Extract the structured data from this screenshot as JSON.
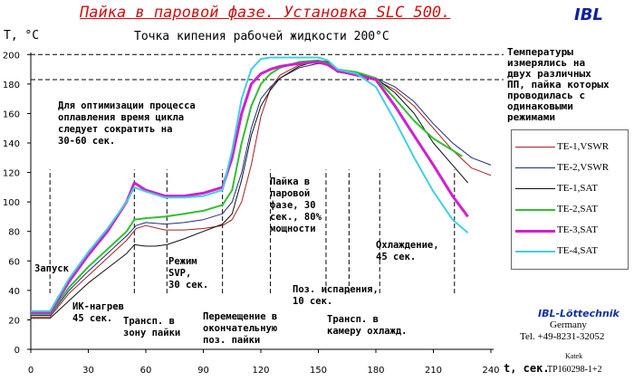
{
  "header": {
    "title": "Пайка в паровой фазе. Установка SLC 500.",
    "logo": "IBL",
    "subtitle": "Точка кипения рабочей жидкости 200°С"
  },
  "colors": {
    "title": "#d01010",
    "logo": "#1020a0",
    "te1_vswr": "#a52020",
    "te2_vswr": "#202a80",
    "te1_sat": "#101010",
    "te2_sat": "#30c030",
    "te3_sat": "#d020d0",
    "te4_sat": "#40d0e0"
  },
  "chart_data": {
    "type": "line",
    "title": "Пайка в паровой фазе. Установка SLC 500.",
    "subtitle": "Точка кипения рабочей жидкости 200°С",
    "xlabel": "t, сек.",
    "ylabel": "T, °C",
    "xlim": [
      0,
      240
    ],
    "ylim": [
      0,
      210
    ],
    "xticks": [
      0,
      30,
      60,
      90,
      120,
      150,
      180,
      210,
      240
    ],
    "yticks": [
      0,
      20,
      40,
      60,
      80,
      100,
      120,
      140,
      160,
      180,
      200
    ],
    "grid": false,
    "legend_position": "right",
    "hlines": [
      200,
      183
    ],
    "vlines": [
      10,
      54,
      71,
      100,
      125,
      154,
      166,
      182,
      221
    ],
    "series": [
      {
        "name": "TE-1,VSWR",
        "color": "#a52020",
        "width": 1,
        "x": [
          0,
          10,
          20,
          30,
          40,
          50,
          55,
          60,
          70,
          80,
          90,
          100,
          105,
          110,
          115,
          120,
          125,
          130,
          140,
          150,
          155,
          160,
          170,
          180,
          190,
          200,
          210,
          220,
          230,
          240
        ],
        "y": [
          22,
          22,
          38,
          50,
          62,
          74,
          82,
          84,
          81,
          81,
          82,
          84,
          88,
          100,
          125,
          158,
          177,
          186,
          193,
          195,
          194,
          188,
          186,
          183,
          176,
          165,
          150,
          135,
          123,
          118
        ]
      },
      {
        "name": "TE-2,VSWR",
        "color": "#202a80",
        "width": 1,
        "x": [
          0,
          10,
          20,
          30,
          40,
          50,
          55,
          60,
          70,
          80,
          90,
          100,
          105,
          110,
          115,
          120,
          125,
          130,
          140,
          150,
          155,
          160,
          170,
          180,
          190,
          200,
          210,
          220,
          230,
          240
        ],
        "y": [
          23,
          23,
          40,
          53,
          65,
          77,
          84,
          86,
          85,
          86,
          88,
          92,
          100,
          120,
          150,
          170,
          178,
          184,
          191,
          194,
          193,
          188,
          187,
          184,
          178,
          168,
          153,
          140,
          130,
          125
        ]
      },
      {
        "name": "TE-1,SAT",
        "color": "#101010",
        "width": 1,
        "x": [
          0,
          10,
          20,
          30,
          40,
          50,
          54,
          60,
          65,
          71,
          80,
          90,
          100,
          105,
          110,
          115,
          120,
          125,
          130,
          140,
          150,
          155,
          160,
          170,
          180,
          190,
          200,
          210,
          220,
          228
        ],
        "y": [
          21,
          21,
          33,
          45,
          55,
          65,
          71,
          70,
          70,
          71,
          75,
          80,
          85,
          92,
          115,
          145,
          165,
          176,
          184,
          192,
          196,
          195,
          190,
          188,
          184,
          174,
          160,
          140,
          125,
          113
        ]
      },
      {
        "name": "TE-2,SAT",
        "color": "#30c030",
        "width": 2,
        "x": [
          0,
          10,
          20,
          30,
          40,
          50,
          54,
          60,
          70,
          80,
          90,
          100,
          105,
          110,
          115,
          120,
          125,
          130,
          140,
          150,
          155,
          160,
          170,
          180,
          190,
          200,
          210,
          220,
          225
        ],
        "y": [
          24,
          24,
          42,
          56,
          68,
          80,
          88,
          89,
          90,
          92,
          94,
          98,
          108,
          140,
          165,
          180,
          187,
          191,
          195,
          196,
          194,
          190,
          188,
          184,
          170,
          155,
          143,
          135,
          131
        ]
      },
      {
        "name": "TE-3,SAT",
        "color": "#d020d0",
        "width": 3,
        "x": [
          0,
          10,
          20,
          30,
          40,
          50,
          54,
          60,
          70,
          80,
          90,
          100,
          105,
          110,
          115,
          120,
          125,
          130,
          140,
          150,
          155,
          160,
          170,
          180,
          190,
          200,
          210,
          220,
          228
        ],
        "y": [
          25,
          25,
          46,
          64,
          80,
          100,
          113,
          108,
          104,
          104,
          106,
          110,
          130,
          160,
          180,
          187,
          190,
          192,
          194,
          195,
          193,
          189,
          186,
          183,
          165,
          145,
          125,
          104,
          90
        ]
      },
      {
        "name": "TE-4,SAT",
        "color": "#40d0e0",
        "width": 2,
        "x": [
          0,
          10,
          20,
          30,
          40,
          50,
          54,
          60,
          70,
          80,
          90,
          100,
          105,
          110,
          115,
          120,
          125,
          130,
          140,
          150,
          155,
          160,
          170,
          180,
          190,
          200,
          210,
          220,
          228
        ],
        "y": [
          26,
          26,
          48,
          66,
          82,
          100,
          110,
          107,
          103,
          103,
          104,
          108,
          135,
          170,
          190,
          197,
          198,
          198,
          198,
          198,
          196,
          190,
          187,
          178,
          155,
          130,
          107,
          88,
          79
        ]
      }
    ]
  },
  "annotations": {
    "optimization": "Для оптимизации процесса\nоплавления время цикла\nследует сократить на\n30-60 сек.",
    "start": "Запуск",
    "ir": "ИК-нагрев\n45 сек.",
    "transfer_soldering": "Трансп. в\nзону пайки",
    "svp": "Режим\nSVP,\n30 сек.",
    "move": "Перемещение в\nокончательную\nпоз. пайки",
    "vapor": "Пайка в\nпаровой\nфазе, 30\nсек., 80%\nмощности",
    "evap": "Поз. испарения,\n10 сек.",
    "transfer_cool": "Трансп. в\nкамеру охлажд.",
    "cooling": "Охлаждение,\n45 сек."
  },
  "note": "Температуры\nизмерялись на\nдвух различных\nПП, пайка которых\nпроводилась с\nодинаковыми\nрежимами",
  "company": {
    "name": "IBL-Löttechnik",
    "country": "Germany",
    "phone": "Tel. +49-8231-32052",
    "author": "Katek",
    "ref": "TP160298-1+2"
  }
}
